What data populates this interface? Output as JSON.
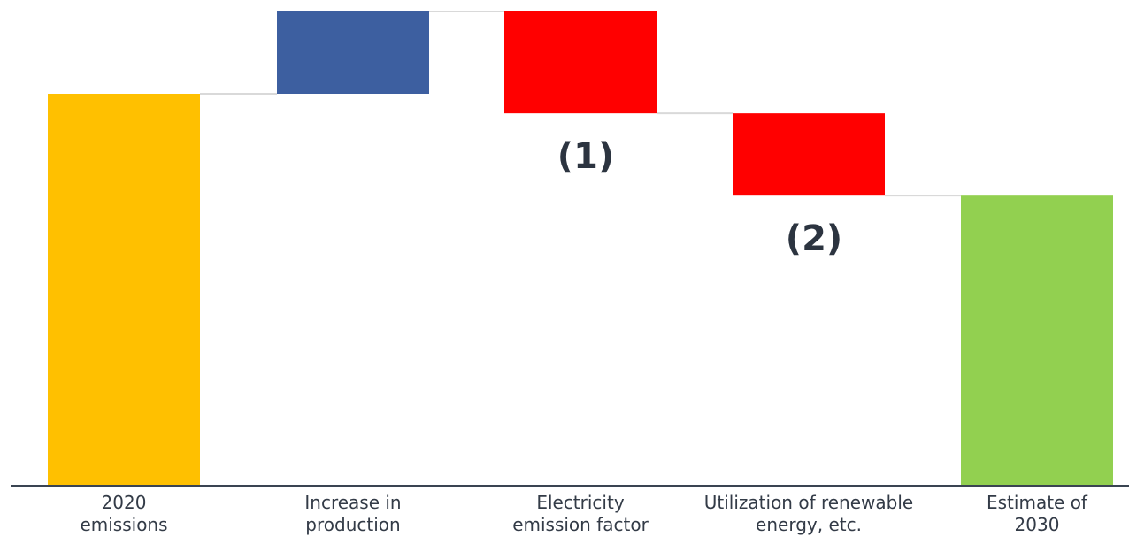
{
  "chart_data": {
    "type": "waterfall",
    "title": "",
    "xlabel": "",
    "ylabel": "",
    "categories": [
      "2020\nemissions",
      "Increase in\nproduction",
      "Electricity\nemission factor",
      "Utilization of renewable\nenergy, etc.",
      "Estimate of\n2030"
    ],
    "values": [
      100,
      21,
      -26,
      -21,
      74
    ],
    "bar_kinds": [
      "total",
      "increase",
      "decrease",
      "decrease",
      "total"
    ],
    "ylim": [
      0,
      122
    ],
    "annotations": [
      {
        "text": "(1)",
        "category_index": 2
      },
      {
        "text": "(2)",
        "category_index": 3
      }
    ],
    "grid": false,
    "legend": "none"
  },
  "colors": {
    "total_start": "#FFC000",
    "increase": "#3D5FA0",
    "decrease": "#FF0000",
    "total_end": "#92D050",
    "connector": "#D9D9D9",
    "axis": "#3A4452",
    "label_text": "#333B47",
    "annotation_text": "#2C3440"
  }
}
